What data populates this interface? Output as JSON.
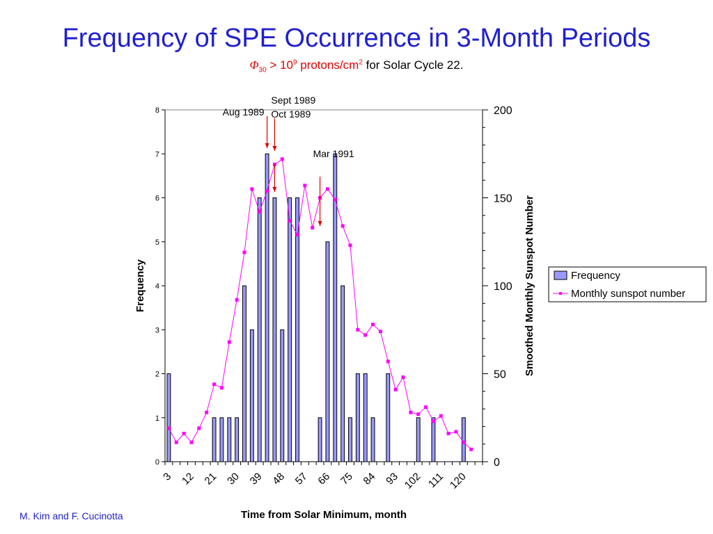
{
  "slide": {
    "title": "Frequency of SPE Occurrence in 3-Month Periods",
    "subtitle_phi": "Φ",
    "subtitle_sub": "30",
    "subtitle_gt": " > 10",
    "subtitle_sup": "9",
    "subtitle_unit": " protons/cm",
    "subtitle_unit_sup": "2",
    "subtitle_rest": " for Solar Cycle 22.",
    "credit": "M. Kim and F. Cucinotta"
  },
  "colors": {
    "title": "#1f1fd0",
    "subtitle_highlight": "#e00000",
    "bar_fill": "#9999ff",
    "line": "#ff00ff",
    "annotation_arrow": "#e00000"
  },
  "chart_data": {
    "type": "bar",
    "xlabel": "Time from Solar Minimum, month",
    "ylabel": "Frequency",
    "y2label": "Smoothed Monthly Sunspot Number",
    "ylim": [
      0,
      8
    ],
    "y2lim": [
      0,
      200
    ],
    "yticks": [
      0,
      1,
      2,
      3,
      4,
      5,
      6,
      7,
      8
    ],
    "y2ticks": [
      0,
      50,
      100,
      150,
      200
    ],
    "x_tick_labels": [
      "3",
      "12",
      "21",
      "30",
      "39",
      "48",
      "57",
      "66",
      "75",
      "84",
      "93",
      "102",
      "111",
      "120"
    ],
    "legend_position": "right",
    "x": [
      3,
      6,
      9,
      12,
      15,
      18,
      21,
      24,
      27,
      30,
      33,
      36,
      39,
      42,
      45,
      48,
      51,
      54,
      57,
      60,
      63,
      66,
      69,
      72,
      75,
      78,
      81,
      84,
      87,
      90,
      93,
      96,
      99,
      102,
      105,
      108,
      111,
      114,
      117,
      120,
      123,
      126
    ],
    "series": [
      {
        "name": "Frequency",
        "type": "bar",
        "values": [
          2,
          0,
          0,
          0,
          0,
          0,
          1,
          1,
          1,
          1,
          4,
          3,
          6,
          7,
          6,
          3,
          6,
          6,
          0,
          0,
          1,
          5,
          7,
          4,
          1,
          2,
          2,
          1,
          0,
          2,
          0,
          0,
          0,
          1,
          0,
          1,
          0,
          0,
          0,
          1,
          0,
          0
        ]
      },
      {
        "name": "Monthly sunspot number",
        "type": "line",
        "values": [
          19,
          11,
          16,
          11,
          19,
          28,
          44,
          42,
          68,
          92,
          119,
          155,
          142,
          154,
          169,
          172,
          137,
          129,
          157,
          133,
          150,
          155,
          149,
          134,
          123,
          75,
          72,
          78,
          74,
          57,
          41,
          48,
          28,
          27,
          31,
          23,
          26,
          16,
          17,
          11,
          7,
          null
        ]
      }
    ],
    "annotations": [
      {
        "text": "Aug 1989",
        "x": 42
      },
      {
        "text": "Sept 1989",
        "x": 45
      },
      {
        "text": "Oct 1989",
        "x": 45
      },
      {
        "text": "Mar 1991",
        "x": 63
      }
    ]
  }
}
